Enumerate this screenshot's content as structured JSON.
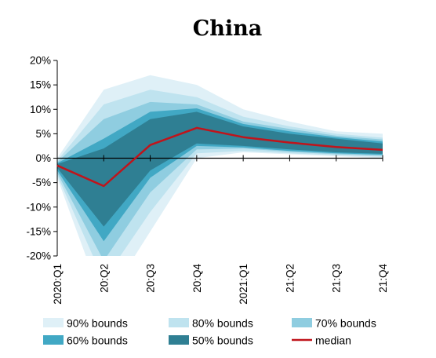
{
  "chart_data": {
    "type": "area",
    "title": "China",
    "xlabel": "",
    "ylabel": "",
    "categories": [
      "2020:Q1",
      "20:Q2",
      "20:Q3",
      "20:Q4",
      "2021:Q1",
      "21:Q2",
      "21:Q3",
      "21:Q4"
    ],
    "ylim": [
      -20,
      20
    ],
    "yticks": [
      20,
      15,
      10,
      5,
      0,
      -5,
      -10,
      -15,
      -20
    ],
    "ytick_labels": [
      "20%",
      "15%",
      "10%",
      "5%",
      "0%",
      "-5%",
      "-10%",
      "-15%",
      "-20%"
    ],
    "grid": false,
    "legend_position": "bottom",
    "series": [
      {
        "name": "90% bounds",
        "lower": [
          -4,
          -30,
          -15,
          0,
          1.2,
          0.8,
          0.4,
          0
        ],
        "upper": [
          0,
          14,
          17,
          15,
          10,
          7.5,
          5.5,
          5
        ],
        "color": "#dff0f7"
      },
      {
        "name": "80% bounds",
        "lower": [
          -3.5,
          -25,
          -11,
          1,
          1.5,
          1,
          0.6,
          0.3
        ],
        "upper": [
          -0.5,
          11,
          14,
          12.5,
          8.5,
          6.5,
          5,
          4.2
        ],
        "color": "#bfe3ef"
      },
      {
        "name": "70% bounds",
        "lower": [
          -3,
          -21,
          -7,
          1.8,
          2,
          1.3,
          0.8,
          0.5
        ],
        "upper": [
          -0.8,
          8,
          11.5,
          11,
          7.5,
          6,
          4.6,
          3.8
        ],
        "color": "#8fcde0"
      },
      {
        "name": "60% bounds",
        "lower": [
          -2.5,
          -17,
          -4,
          2.5,
          2.2,
          1.5,
          1,
          0.7
        ],
        "upper": [
          -1,
          4,
          9.5,
          10.2,
          7,
          5.5,
          4.3,
          3.4
        ],
        "color": "#41a8c4"
      },
      {
        "name": "50% bounds",
        "lower": [
          -2,
          -14,
          -2.5,
          3,
          2.5,
          1.8,
          1.2,
          0.9
        ],
        "upper": [
          -1.2,
          2,
          8,
          9.5,
          6.5,
          5,
          4,
          3
        ],
        "color": "#2f7f93"
      },
      {
        "name": "median",
        "values": [
          -1.5,
          -5.7,
          2.7,
          6.2,
          4.3,
          3.2,
          2.3,
          1.7
        ],
        "color": "#c0141b"
      }
    ]
  }
}
